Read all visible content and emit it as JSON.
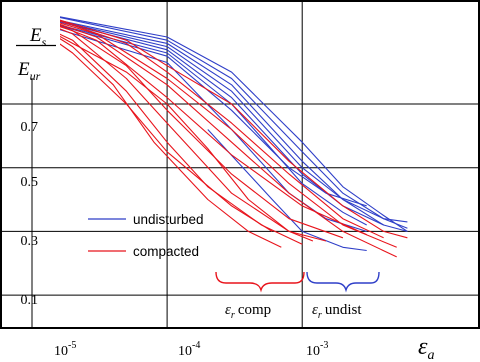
{
  "chart_data": {
    "type": "line",
    "title": "",
    "x_scale": "log",
    "xlim": [
      6e-06,
      0.02
    ],
    "ylim": [
      0.0,
      1.02
    ],
    "grid": true,
    "xlabel": "ε_a",
    "ylabel": "E_s / E_ur",
    "x_ticks": [
      {
        "base": "10",
        "exp": "-5",
        "value": 1e-05
      },
      {
        "base": "10",
        "exp": "-4",
        "value": 0.0001
      },
      {
        "base": "10",
        "exp": "-3",
        "value": 0.001
      }
    ],
    "y_ticks": [
      "0.1",
      "0.3",
      "0.5",
      "0.7"
    ],
    "y_tick_values": [
      0.1,
      0.3,
      0.5,
      0.7
    ],
    "legend": {
      "placement": "lower-left",
      "items": [
        {
          "label": "undisturbed",
          "color": "#2f3fc8"
        },
        {
          "label": "compacted",
          "color": "#e8141c"
        }
      ]
    },
    "annotations": {
      "comp": {
        "sym": "ε",
        "sub": "r",
        "text": "comp",
        "x_range": [
          0.0002,
          0.0008
        ],
        "color": "#e8141c"
      },
      "undist": {
        "sym": "ε",
        "sub": "r",
        "text": "undist",
        "x_range": [
          0.0008,
          0.0025
        ],
        "color": "#2f3fc8"
      }
    },
    "series": [
      {
        "group": "undisturbed",
        "color": "#2f3fc8",
        "points": [
          [
            1e-05,
            0.99
          ],
          [
            0.0001,
            0.91
          ],
          [
            0.0003,
            0.8
          ],
          [
            0.001,
            0.58
          ],
          [
            0.002,
            0.44
          ],
          [
            0.004,
            0.35
          ],
          [
            0.006,
            0.3
          ]
        ]
      },
      {
        "group": "undisturbed",
        "color": "#2f3fc8",
        "points": [
          [
            1e-05,
            0.99
          ],
          [
            0.0001,
            0.9
          ],
          [
            0.0003,
            0.78
          ],
          [
            0.001,
            0.55
          ],
          [
            0.002,
            0.42
          ],
          [
            0.004,
            0.34
          ],
          [
            0.006,
            0.31
          ]
        ]
      },
      {
        "group": "undisturbed",
        "color": "#2f3fc8",
        "points": [
          [
            1e-05,
            0.98
          ],
          [
            0.0001,
            0.89
          ],
          [
            0.0003,
            0.76
          ],
          [
            0.001,
            0.52
          ],
          [
            0.002,
            0.4
          ],
          [
            0.004,
            0.32
          ],
          [
            0.006,
            0.3
          ]
        ]
      },
      {
        "group": "undisturbed",
        "color": "#2f3fc8",
        "points": [
          [
            1e-05,
            0.98
          ],
          [
            0.0001,
            0.88
          ],
          [
            0.0003,
            0.74
          ],
          [
            0.001,
            0.5
          ],
          [
            0.002,
            0.4
          ],
          [
            0.004,
            0.34
          ],
          [
            0.006,
            0.33
          ]
        ]
      },
      {
        "group": "undisturbed",
        "color": "#2f3fc8",
        "points": [
          [
            1e-05,
            0.98
          ],
          [
            0.0001,
            0.87
          ],
          [
            0.0003,
            0.72
          ],
          [
            0.001,
            0.48
          ],
          [
            0.002,
            0.38
          ],
          [
            0.004,
            0.32
          ]
        ]
      },
      {
        "group": "undisturbed",
        "color": "#2f3fc8",
        "points": [
          [
            1e-05,
            0.97
          ],
          [
            0.0001,
            0.86
          ],
          [
            0.0003,
            0.7
          ],
          [
            0.001,
            0.45
          ],
          [
            0.002,
            0.36
          ],
          [
            0.003,
            0.32
          ]
        ]
      },
      {
        "group": "undisturbed",
        "color": "#2f3fc8",
        "points": [
          [
            1e-05,
            0.97
          ],
          [
            0.0001,
            0.85
          ],
          [
            0.0003,
            0.68
          ],
          [
            0.0008,
            0.5
          ],
          [
            0.0015,
            0.42
          ],
          [
            0.003,
            0.38
          ]
        ]
      },
      {
        "group": "undisturbed",
        "color": "#2f3fc8",
        "points": [
          [
            1e-05,
            0.96
          ],
          [
            0.0001,
            0.83
          ],
          [
            0.0003,
            0.62
          ],
          [
            0.0008,
            0.42
          ],
          [
            0.0015,
            0.34
          ],
          [
            0.003,
            0.3
          ]
        ]
      },
      {
        "group": "undisturbed",
        "color": "#2f3fc8",
        "points": [
          [
            0.0002,
            0.62
          ],
          [
            0.0006,
            0.4
          ],
          [
            0.001,
            0.3
          ],
          [
            0.002,
            0.25
          ],
          [
            0.003,
            0.24
          ]
        ]
      },
      {
        "group": "compacted",
        "color": "#e8141c",
        "points": [
          [
            1e-05,
            0.99
          ],
          [
            5e-05,
            0.9
          ],
          [
            0.0001,
            0.82
          ],
          [
            0.0003,
            0.7
          ],
          [
            0.0008,
            0.52
          ],
          [
            0.002,
            0.38
          ],
          [
            0.004,
            0.3
          ],
          [
            0.006,
            0.28
          ]
        ]
      },
      {
        "group": "compacted",
        "color": "#e8141c",
        "points": [
          [
            1e-05,
            0.99
          ],
          [
            5e-05,
            0.89
          ],
          [
            0.0001,
            0.8
          ],
          [
            0.0003,
            0.64
          ],
          [
            0.0008,
            0.48
          ],
          [
            0.002,
            0.34
          ],
          [
            0.004,
            0.28
          ]
        ]
      },
      {
        "group": "compacted",
        "color": "#e8141c",
        "points": [
          [
            1e-05,
            0.98
          ],
          [
            3e-05,
            0.92
          ],
          [
            0.0001,
            0.78
          ],
          [
            0.0003,
            0.62
          ],
          [
            0.0008,
            0.45
          ],
          [
            0.002,
            0.32
          ],
          [
            0.005,
            0.25
          ]
        ]
      },
      {
        "group": "compacted",
        "color": "#e8141c",
        "points": [
          [
            1e-05,
            0.98
          ],
          [
            3e-05,
            0.91
          ],
          [
            0.0001,
            0.76
          ],
          [
            0.0003,
            0.58
          ],
          [
            0.0008,
            0.42
          ],
          [
            0.002,
            0.3
          ],
          [
            0.005,
            0.22
          ]
        ]
      },
      {
        "group": "compacted",
        "color": "#e8141c",
        "points": [
          [
            1e-05,
            0.98
          ],
          [
            3e-05,
            0.9
          ],
          [
            0.0001,
            0.72
          ],
          [
            0.0003,
            0.54
          ],
          [
            0.001,
            0.38
          ],
          [
            0.003,
            0.29
          ]
        ]
      },
      {
        "group": "compacted",
        "color": "#e8141c",
        "points": [
          [
            1e-05,
            0.97
          ],
          [
            2e-05,
            0.93
          ],
          [
            5e-05,
            0.82
          ],
          [
            0.0001,
            0.68
          ],
          [
            0.0003,
            0.48
          ],
          [
            0.0008,
            0.34
          ],
          [
            0.002,
            0.28
          ]
        ]
      },
      {
        "group": "compacted",
        "color": "#e8141c",
        "points": [
          [
            1e-05,
            0.97
          ],
          [
            2e-05,
            0.92
          ],
          [
            5e-05,
            0.78
          ],
          [
            0.0001,
            0.64
          ],
          [
            0.0003,
            0.42
          ],
          [
            0.0008,
            0.3
          ],
          [
            0.0015,
            0.27
          ]
        ]
      },
      {
        "group": "compacted",
        "color": "#e8141c",
        "points": [
          [
            1e-05,
            0.96
          ],
          [
            2e-05,
            0.9
          ],
          [
            5e-05,
            0.74
          ],
          [
            0.0001,
            0.58
          ],
          [
            0.0002,
            0.44
          ],
          [
            0.0005,
            0.32
          ],
          [
            0.001,
            0.26
          ]
        ]
      },
      {
        "group": "compacted",
        "color": "#e8141c",
        "points": [
          [
            1e-05,
            0.96
          ],
          [
            2e-05,
            0.88
          ],
          [
            4e-05,
            0.76
          ],
          [
            8e-05,
            0.58
          ],
          [
            0.0002,
            0.4
          ],
          [
            0.0004,
            0.3
          ],
          [
            0.0007,
            0.25
          ]
        ]
      },
      {
        "group": "compacted",
        "color": "#e8141c",
        "points": [
          [
            1e-05,
            0.96
          ],
          [
            2e-05,
            0.89
          ],
          [
            5e-05,
            0.8
          ],
          [
            0.0001,
            0.7
          ],
          [
            0.0002,
            0.56
          ],
          [
            0.0004,
            0.4
          ],
          [
            0.0008,
            0.3
          ],
          [
            0.0012,
            0.27
          ]
        ]
      },
      {
        "group": "compacted",
        "color": "#e8141c",
        "points": [
          [
            1e-05,
            0.95
          ],
          [
            2e-05,
            0.86
          ],
          [
            5e-05,
            0.7
          ],
          [
            0.0001,
            0.55
          ],
          [
            0.0003,
            0.38
          ],
          [
            0.0006,
            0.3
          ]
        ]
      }
    ]
  }
}
